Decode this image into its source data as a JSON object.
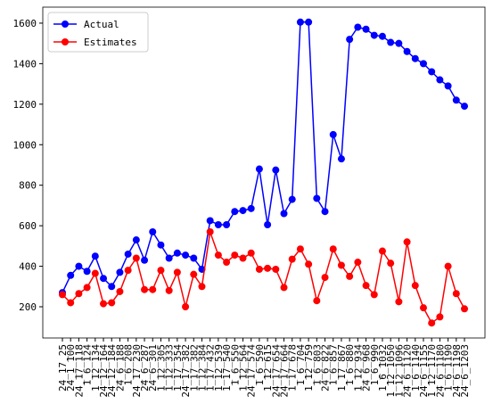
{
  "chart_data": {
    "type": "line",
    "categories": [
      "24_17_25",
      "24_1_100",
      "24_17_118",
      "1_6_124",
      "1_12_134",
      "24_12_164",
      "24_12_184",
      "24_6_188",
      "1_6_208",
      "24_17_230",
      "24_6_287",
      "24_6_301",
      "1_12_305",
      "1_12_333",
      "1_17_354",
      "24_17_382",
      "1_17_382",
      "1_12_384",
      "1_17_432",
      "1_12_539",
      "1_17_540",
      "1_6_550",
      "1_12_564",
      "24_17_574",
      "1_6_590",
      "1_12_615",
      "24_17_654",
      "24_17_664",
      "1_17_678",
      "1_6_704",
      "1_12_759",
      "1_6_803",
      "24_6_822",
      "1_6_857",
      "1_17_867",
      "1_6_880",
      "1_12_934",
      "24_6_968",
      "1_6_990",
      "1_6_1032",
      "1_12_1050",
      "1_12_1096",
      "24_6_1120",
      "1_6_1140",
      "24_6_1155",
      "1_12_1170",
      "24_6_1180",
      "1_6_1190",
      "24_6_1198",
      "24_6_1203"
    ],
    "series": [
      {
        "name": "Actual",
        "color": "#0000ff",
        "values": [
          270,
          355,
          400,
          375,
          450,
          340,
          300,
          370,
          460,
          530,
          430,
          570,
          505,
          440,
          465,
          455,
          440,
          385,
          625,
          605,
          605,
          670,
          675,
          685,
          880,
          605,
          875,
          660,
          730,
          1605,
          1605,
          735,
          670,
          1050,
          930,
          1520,
          1580,
          1570,
          1540,
          1535,
          1505,
          1500,
          1460,
          1425,
          1400,
          1360,
          1320,
          1290,
          1220,
          1190
        ]
      },
      {
        "name": "Estimates",
        "color": "#ff0000",
        "values": [
          260,
          220,
          265,
          295,
          365,
          215,
          220,
          275,
          380,
          440,
          285,
          285,
          380,
          280,
          370,
          200,
          360,
          300,
          570,
          455,
          420,
          455,
          440,
          465,
          385,
          390,
          385,
          295,
          435,
          485,
          410,
          230,
          345,
          485,
          405,
          350,
          420,
          305,
          260,
          475,
          415,
          225,
          520,
          305,
          195,
          120,
          150,
          400,
          265,
          190
        ]
      }
    ],
    "ylim": [
      46,
      1679
    ],
    "yticks": [
      200,
      400,
      600,
      800,
      1000,
      1200,
      1400,
      1600
    ],
    "legend": "upper left"
  }
}
